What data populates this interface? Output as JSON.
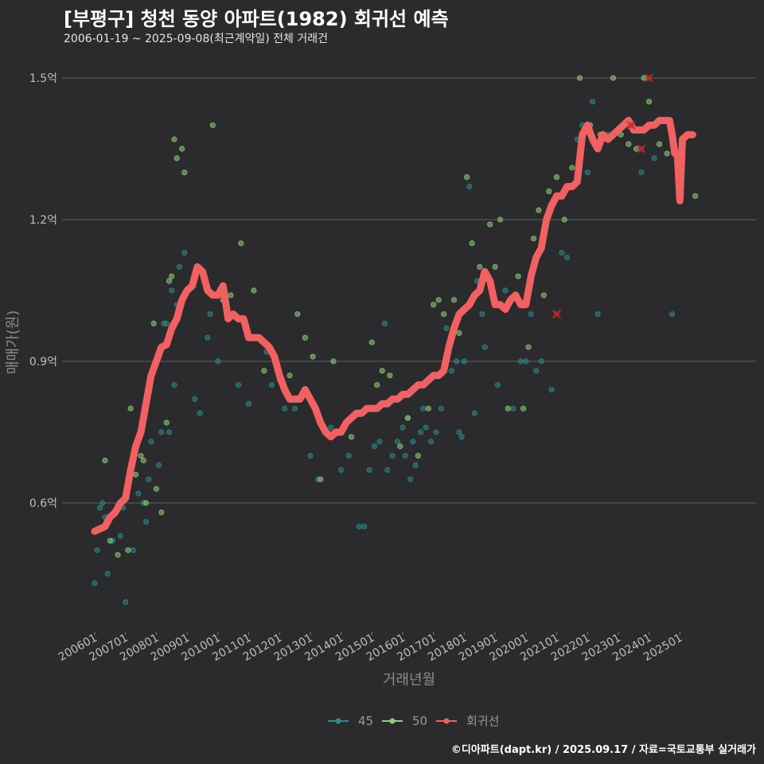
{
  "title": "[부평구] 청천 동양 아파트(1982) 회귀선 예측",
  "subtitle": "2006-01-19 ~ 2025-09-08(최근계약일) 전체 거래건",
  "footer": "©디아파트(dapt.kr) / 2025.09.17 / 자료=국토교통부 실거래가",
  "chart_data": {
    "type": "scatter",
    "xlabel": "거래년월",
    "ylabel": "매매가(원)",
    "x_range": [
      "2006-01",
      "2025-12"
    ],
    "ylim": [
      0.35,
      1.55
    ],
    "yticks": [
      0.6,
      0.9,
      1.2,
      1.5
    ],
    "ytick_labels": [
      "0.6억",
      "0.9억",
      "1.2억",
      "1.5억"
    ],
    "xtick_labels": [
      "200601",
      "200701",
      "200801",
      "200901",
      "201001",
      "201101",
      "201201",
      "201301",
      "201401",
      "201501",
      "201601",
      "201701",
      "201801",
      "201901",
      "202001",
      "202101",
      "202201",
      "202301",
      "202401",
      "202501"
    ],
    "grid": "horizontal",
    "legend_position": "bottom",
    "colors": {
      "s45": "#2a8c8c",
      "s50": "#8fd17a",
      "regression": "#f26161",
      "grid": "#5f5f5f"
    },
    "series": [
      {
        "name": "45",
        "points": [
          [
            "2006-01",
            0.43
          ],
          [
            "2006-02",
            0.5
          ],
          [
            "2006-03",
            0.59
          ],
          [
            "2006-04",
            0.6
          ],
          [
            "2006-05",
            0.57
          ],
          [
            "2006-06",
            0.45
          ],
          [
            "2006-08",
            0.52
          ],
          [
            "2006-11",
            0.53
          ],
          [
            "2006-12",
            0.59
          ],
          [
            "2007-01",
            0.39
          ],
          [
            "2007-04",
            0.5
          ],
          [
            "2007-06",
            0.62
          ],
          [
            "2007-08",
            0.6
          ],
          [
            "2007-09",
            0.56
          ],
          [
            "2007-10",
            0.65
          ],
          [
            "2007-11",
            0.73
          ],
          [
            "2008-02",
            0.68
          ],
          [
            "2008-03",
            0.75
          ],
          [
            "2008-04",
            0.98
          ],
          [
            "2008-05",
            0.98
          ],
          [
            "2008-06",
            0.75
          ],
          [
            "2008-07",
            1.05
          ],
          [
            "2008-08",
            0.85
          ],
          [
            "2008-09",
            1.02
          ],
          [
            "2008-10",
            1.1
          ],
          [
            "2008-12",
            1.13
          ],
          [
            "2009-04",
            0.82
          ],
          [
            "2009-06",
            0.79
          ],
          [
            "2009-09",
            0.95
          ],
          [
            "2009-10",
            1.0
          ],
          [
            "2010-01",
            0.9
          ],
          [
            "2010-09",
            0.85
          ],
          [
            "2011-01",
            0.81
          ],
          [
            "2011-08",
            0.92
          ],
          [
            "2011-10",
            0.85
          ],
          [
            "2012-01",
            0.86
          ],
          [
            "2012-03",
            0.8
          ],
          [
            "2012-07",
            0.8
          ],
          [
            "2013-01",
            0.7
          ],
          [
            "2013-04",
            0.65
          ],
          [
            "2013-09",
            0.76
          ],
          [
            "2014-01",
            0.67
          ],
          [
            "2014-04",
            0.7
          ],
          [
            "2014-08",
            0.55
          ],
          [
            "2014-10",
            0.55
          ],
          [
            "2014-12",
            0.67
          ],
          [
            "2015-02",
            0.72
          ],
          [
            "2015-04",
            0.73
          ],
          [
            "2015-06",
            0.98
          ],
          [
            "2015-07",
            0.67
          ],
          [
            "2015-09",
            0.7
          ],
          [
            "2015-11",
            0.73
          ],
          [
            "2016-01",
            0.76
          ],
          [
            "2016-02",
            0.7
          ],
          [
            "2016-03",
            0.78
          ],
          [
            "2016-04",
            0.65
          ],
          [
            "2016-05",
            0.73
          ],
          [
            "2016-06",
            0.68
          ],
          [
            "2016-08",
            0.75
          ],
          [
            "2016-09",
            0.8
          ],
          [
            "2016-10",
            0.76
          ],
          [
            "2016-12",
            0.73
          ],
          [
            "2017-02",
            0.75
          ],
          [
            "2017-04",
            0.8
          ],
          [
            "2017-06",
            0.97
          ],
          [
            "2017-08",
            0.88
          ],
          [
            "2017-10",
            0.9
          ],
          [
            "2017-11",
            0.75
          ],
          [
            "2017-12",
            0.74
          ],
          [
            "2018-01",
            0.9
          ],
          [
            "2018-03",
            1.27
          ],
          [
            "2018-05",
            0.79
          ],
          [
            "2018-06",
            1.07
          ],
          [
            "2018-08",
            1.0
          ],
          [
            "2018-09",
            0.93
          ],
          [
            "2019-02",
            0.85
          ],
          [
            "2019-05",
            1.05
          ],
          [
            "2019-08",
            0.8
          ],
          [
            "2019-11",
            0.9
          ],
          [
            "2020-01",
            0.9
          ],
          [
            "2020-03",
            1.0
          ],
          [
            "2020-05",
            0.88
          ],
          [
            "2020-07",
            0.9
          ],
          [
            "2020-11",
            0.84
          ],
          [
            "2021-03",
            1.13
          ],
          [
            "2021-05",
            1.12
          ],
          [
            "2021-09",
            1.37
          ],
          [
            "2021-11",
            1.4
          ],
          [
            "2022-01",
            1.3
          ],
          [
            "2022-03",
            1.45
          ],
          [
            "2022-05",
            1.0
          ],
          [
            "2022-09",
            1.38
          ],
          [
            "2023-06",
            1.4
          ],
          [
            "2023-10",
            1.3
          ],
          [
            "2024-03",
            1.33
          ],
          [
            "2024-10",
            1.0
          ]
        ]
      },
      {
        "name": "50",
        "points": [
          [
            "2006-05",
            0.69
          ],
          [
            "2006-07",
            0.52
          ],
          [
            "2006-10",
            0.49
          ],
          [
            "2007-02",
            0.5
          ],
          [
            "2007-03",
            0.8
          ],
          [
            "2007-05",
            0.66
          ],
          [
            "2007-07",
            0.7
          ],
          [
            "2007-08",
            0.69
          ],
          [
            "2007-09",
            0.6
          ],
          [
            "2007-12",
            0.98
          ],
          [
            "2008-01",
            0.63
          ],
          [
            "2008-03",
            0.58
          ],
          [
            "2008-05",
            0.77
          ],
          [
            "2008-06",
            1.07
          ],
          [
            "2008-07",
            1.08
          ],
          [
            "2008-08",
            1.37
          ],
          [
            "2008-09",
            1.33
          ],
          [
            "2008-11",
            1.35
          ],
          [
            "2008-12",
            1.3
          ],
          [
            "2009-11",
            1.4
          ],
          [
            "2010-03",
            1.03
          ],
          [
            "2010-06",
            1.04
          ],
          [
            "2010-10",
            1.15
          ],
          [
            "2011-03",
            1.05
          ],
          [
            "2011-07",
            0.88
          ],
          [
            "2011-11",
            0.91
          ],
          [
            "2012-05",
            0.87
          ],
          [
            "2012-08",
            1.0
          ],
          [
            "2012-11",
            0.95
          ],
          [
            "2013-02",
            0.91
          ],
          [
            "2013-05",
            0.65
          ],
          [
            "2013-10",
            0.9
          ],
          [
            "2014-05",
            0.74
          ],
          [
            "2014-09",
            0.79
          ],
          [
            "2015-01",
            0.94
          ],
          [
            "2015-03",
            0.85
          ],
          [
            "2015-05",
            0.88
          ],
          [
            "2015-08",
            0.87
          ],
          [
            "2015-12",
            0.72
          ],
          [
            "2016-03",
            0.78
          ],
          [
            "2016-07",
            0.7
          ],
          [
            "2016-11",
            0.8
          ],
          [
            "2017-01",
            1.02
          ],
          [
            "2017-03",
            1.03
          ],
          [
            "2017-05",
            1.0
          ],
          [
            "2017-07",
            0.93
          ],
          [
            "2017-09",
            1.03
          ],
          [
            "2017-11",
            0.96
          ],
          [
            "2018-02",
            1.29
          ],
          [
            "2018-04",
            1.15
          ],
          [
            "2018-07",
            1.1
          ],
          [
            "2018-11",
            1.19
          ],
          [
            "2019-01",
            1.1
          ],
          [
            "2019-03",
            1.2
          ],
          [
            "2019-06",
            0.8
          ],
          [
            "2019-10",
            1.08
          ],
          [
            "2019-12",
            0.8
          ],
          [
            "2020-02",
            0.93
          ],
          [
            "2020-04",
            1.16
          ],
          [
            "2020-06",
            1.22
          ],
          [
            "2020-08",
            1.04
          ],
          [
            "2020-10",
            1.26
          ],
          [
            "2021-01",
            1.29
          ],
          [
            "2021-04",
            1.2
          ],
          [
            "2021-07",
            1.31
          ],
          [
            "2021-10",
            1.5
          ],
          [
            "2022-02",
            1.4
          ],
          [
            "2022-06",
            1.38
          ],
          [
            "2022-11",
            1.5
          ],
          [
            "2023-02",
            1.38
          ],
          [
            "2023-05",
            1.36
          ],
          [
            "2023-08",
            1.35
          ],
          [
            "2023-11",
            1.5
          ],
          [
            "2024-01",
            1.45
          ],
          [
            "2024-05",
            1.36
          ],
          [
            "2024-08",
            1.34
          ],
          [
            "2025-02",
            1.35
          ],
          [
            "2025-07",
            1.25
          ]
        ]
      }
    ],
    "regression": {
      "name": "회귀선",
      "points": [
        [
          "2006-01",
          0.54
        ],
        [
          "2006-03",
          0.545
        ],
        [
          "2006-05",
          0.55
        ],
        [
          "2006-07",
          0.57
        ],
        [
          "2006-09",
          0.58
        ],
        [
          "2006-11",
          0.6
        ],
        [
          "2007-01",
          0.61
        ],
        [
          "2007-03",
          0.67
        ],
        [
          "2007-05",
          0.72
        ],
        [
          "2007-07",
          0.75
        ],
        [
          "2007-09",
          0.81
        ],
        [
          "2007-11",
          0.87
        ],
        [
          "2008-01",
          0.9
        ],
        [
          "2008-03",
          0.93
        ],
        [
          "2008-05",
          0.935
        ],
        [
          "2008-07",
          0.97
        ],
        [
          "2008-09",
          0.99
        ],
        [
          "2008-11",
          1.03
        ],
        [
          "2009-01",
          1.05
        ],
        [
          "2009-03",
          1.06
        ],
        [
          "2009-05",
          1.1
        ],
        [
          "2009-07",
          1.09
        ],
        [
          "2009-09",
          1.05
        ],
        [
          "2009-11",
          1.04
        ],
        [
          "2010-01",
          1.04
        ],
        [
          "2010-03",
          1.06
        ],
        [
          "2010-05",
          0.99
        ],
        [
          "2010-07",
          1.0
        ],
        [
          "2010-09",
          0.99
        ],
        [
          "2010-11",
          0.99
        ],
        [
          "2011-01",
          0.95
        ],
        [
          "2011-03",
          0.95
        ],
        [
          "2011-05",
          0.95
        ],
        [
          "2011-07",
          0.94
        ],
        [
          "2011-09",
          0.93
        ],
        [
          "2011-11",
          0.91
        ],
        [
          "2012-01",
          0.87
        ],
        [
          "2012-03",
          0.84
        ],
        [
          "2012-05",
          0.82
        ],
        [
          "2012-07",
          0.82
        ],
        [
          "2012-09",
          0.82
        ],
        [
          "2012-11",
          0.84
        ],
        [
          "2013-01",
          0.82
        ],
        [
          "2013-03",
          0.8
        ],
        [
          "2013-05",
          0.77
        ],
        [
          "2013-07",
          0.75
        ],
        [
          "2013-09",
          0.74
        ],
        [
          "2013-11",
          0.75
        ],
        [
          "2014-01",
          0.75
        ],
        [
          "2014-03",
          0.77
        ],
        [
          "2014-05",
          0.78
        ],
        [
          "2014-07",
          0.79
        ],
        [
          "2014-09",
          0.79
        ],
        [
          "2014-11",
          0.8
        ],
        [
          "2015-01",
          0.8
        ],
        [
          "2015-03",
          0.8
        ],
        [
          "2015-05",
          0.81
        ],
        [
          "2015-07",
          0.81
        ],
        [
          "2015-09",
          0.82
        ],
        [
          "2015-11",
          0.82
        ],
        [
          "2016-01",
          0.83
        ],
        [
          "2016-03",
          0.83
        ],
        [
          "2016-05",
          0.84
        ],
        [
          "2016-07",
          0.85
        ],
        [
          "2016-09",
          0.85
        ],
        [
          "2016-11",
          0.86
        ],
        [
          "2017-01",
          0.87
        ],
        [
          "2017-03",
          0.87
        ],
        [
          "2017-05",
          0.88
        ],
        [
          "2017-07",
          0.93
        ],
        [
          "2017-09",
          0.97
        ],
        [
          "2017-11",
          1.0
        ],
        [
          "2018-01",
          1.01
        ],
        [
          "2018-03",
          1.02
        ],
        [
          "2018-05",
          1.04
        ],
        [
          "2018-07",
          1.05
        ],
        [
          "2018-09",
          1.09
        ],
        [
          "2018-11",
          1.07
        ],
        [
          "2019-01",
          1.02
        ],
        [
          "2019-03",
          1.02
        ],
        [
          "2019-05",
          1.01
        ],
        [
          "2019-07",
          1.03
        ],
        [
          "2019-09",
          1.04
        ],
        [
          "2019-11",
          1.02
        ],
        [
          "2020-01",
          1.02
        ],
        [
          "2020-03",
          1.08
        ],
        [
          "2020-05",
          1.12
        ],
        [
          "2020-07",
          1.14
        ],
        [
          "2020-09",
          1.2
        ],
        [
          "2020-11",
          1.23
        ],
        [
          "2021-01",
          1.25
        ],
        [
          "2021-03",
          1.25
        ],
        [
          "2021-05",
          1.27
        ],
        [
          "2021-07",
          1.27
        ],
        [
          "2021-09",
          1.28
        ],
        [
          "2021-11",
          1.38
        ],
        [
          "2022-01",
          1.4
        ],
        [
          "2022-03",
          1.37
        ],
        [
          "2022-05",
          1.35
        ],
        [
          "2022-07",
          1.38
        ],
        [
          "2022-09",
          1.37
        ],
        [
          "2022-11",
          1.38
        ],
        [
          "2023-01",
          1.39
        ],
        [
          "2023-03",
          1.4
        ],
        [
          "2023-05",
          1.41
        ],
        [
          "2023-07",
          1.39
        ],
        [
          "2023-09",
          1.39
        ],
        [
          "2023-11",
          1.39
        ],
        [
          "2024-01",
          1.4
        ],
        [
          "2024-03",
          1.4
        ],
        [
          "2024-05",
          1.41
        ],
        [
          "2024-07",
          1.41
        ],
        [
          "2024-09",
          1.41
        ],
        [
          "2024-10",
          1.38
        ],
        [
          "2024-11",
          1.34
        ],
        [
          "2024-12",
          1.34
        ],
        [
          "2025-01",
          1.24
        ],
        [
          "2025-02",
          1.37
        ],
        [
          "2025-04",
          1.38
        ],
        [
          "2025-06",
          1.38
        ]
      ]
    },
    "markers_x": [
      [
        "2021-01",
        1.0
      ],
      [
        "2023-10",
        1.35
      ],
      [
        "2024-01",
        1.5
      ],
      [
        "2023-06",
        1.4
      ]
    ]
  }
}
